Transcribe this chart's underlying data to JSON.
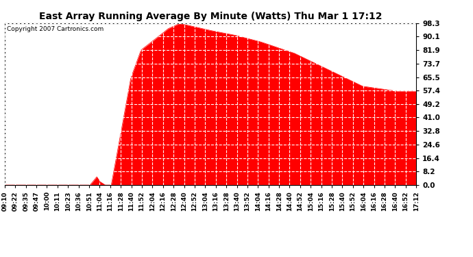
{
  "title": "East Array Running Average By Minute (Watts) Thu Mar 1 17:12",
  "copyright": "Copyright 2007 Cartronics.com",
  "fill_color": "#FF0000",
  "line_color": "#FF0000",
  "background_color": "#FFFFFF",
  "grid_color": "#FFFFFF",
  "plot_bg_color": "#FFFFFF",
  "ylim": [
    0.0,
    98.3
  ],
  "yticks": [
    0.0,
    8.2,
    16.4,
    24.6,
    32.8,
    41.0,
    49.2,
    57.4,
    65.5,
    73.7,
    81.9,
    90.1,
    98.3
  ],
  "xtick_labels": [
    "09:10",
    "09:22",
    "09:35",
    "09:47",
    "10:00",
    "10:11",
    "10:23",
    "10:36",
    "10:51",
    "11:04",
    "11:16",
    "11:28",
    "11:40",
    "11:52",
    "12:04",
    "12:16",
    "12:28",
    "12:40",
    "12:52",
    "13:04",
    "13:16",
    "13:28",
    "13:40",
    "13:52",
    "14:04",
    "14:16",
    "14:28",
    "14:40",
    "14:52",
    "15:04",
    "15:16",
    "15:28",
    "15:40",
    "15:52",
    "16:04",
    "16:16",
    "16:28",
    "16:40",
    "16:52",
    "17:12"
  ],
  "n_points": 484,
  "curve_key_x": [
    0,
    100,
    108,
    112,
    118,
    125,
    135,
    148,
    160,
    175,
    192,
    205,
    215,
    240,
    270,
    300,
    340,
    380,
    420,
    460,
    478,
    483
  ],
  "curve_key_y": [
    0,
    0,
    5,
    2,
    0,
    0,
    28,
    65,
    82,
    88,
    95,
    98,
    97,
    94,
    91,
    87,
    80,
    70,
    60,
    57,
    57,
    57
  ]
}
